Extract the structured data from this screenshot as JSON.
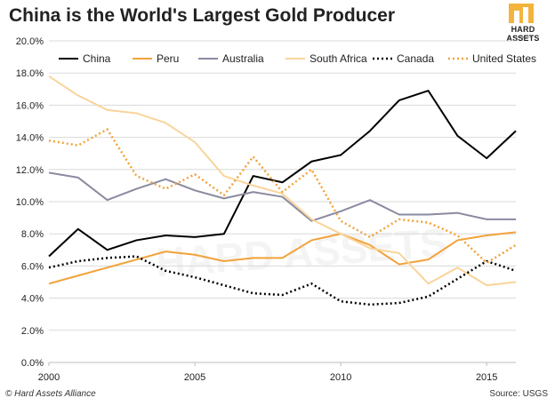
{
  "chart_data": {
    "type": "line",
    "title": "China is the World's Largest Gold Producer",
    "xlabel": "",
    "ylabel": "",
    "x": [
      2000,
      2001,
      2002,
      2003,
      2004,
      2005,
      2006,
      2007,
      2008,
      2009,
      2010,
      2011,
      2012,
      2013,
      2014,
      2015,
      2016
    ],
    "xlim": [
      2000,
      2016
    ],
    "ylim": [
      0,
      20
    ],
    "x_ticks": [
      2000,
      2005,
      2010,
      2015
    ],
    "x_tick_labels": [
      "2000",
      "2005",
      "2010",
      "2015"
    ],
    "y_ticks": [
      0,
      2,
      4,
      6,
      8,
      10,
      12,
      14,
      16,
      18,
      20
    ],
    "y_tick_labels": [
      "0.0%",
      "2.0%",
      "4.0%",
      "6.0%",
      "8.0%",
      "10.0%",
      "12.0%",
      "14.0%",
      "16.0%",
      "18.0%",
      "20.0%"
    ],
    "grid": true,
    "legend_position": "top",
    "series": [
      {
        "name": "China",
        "color": "#000000",
        "style": "solid",
        "values": [
          6.6,
          8.3,
          7.0,
          7.6,
          7.9,
          7.8,
          8.0,
          11.6,
          11.2,
          12.5,
          12.9,
          14.4,
          16.3,
          16.9,
          14.1,
          12.7,
          14.4
        ]
      },
      {
        "name": "Peru",
        "color": "#f2a23a",
        "style": "solid",
        "values": [
          4.9,
          5.4,
          5.9,
          6.4,
          6.9,
          6.7,
          6.3,
          6.5,
          6.5,
          7.6,
          8.0,
          7.3,
          6.1,
          6.4,
          7.6,
          7.9,
          8.1
        ]
      },
      {
        "name": "Australia",
        "color": "#8a8aa0",
        "style": "solid",
        "values": [
          11.8,
          11.5,
          10.1,
          10.8,
          11.4,
          10.7,
          10.2,
          10.6,
          10.3,
          8.8,
          9.4,
          10.1,
          9.2,
          9.2,
          9.3,
          8.9,
          8.9
        ]
      },
      {
        "name": "South Africa",
        "color": "#f9d49a",
        "style": "solid",
        "values": [
          17.8,
          16.6,
          15.7,
          15.5,
          14.9,
          13.7,
          11.6,
          11.0,
          10.5,
          8.9,
          8.0,
          7.1,
          6.8,
          4.9,
          5.9,
          4.8,
          5.0
        ]
      },
      {
        "name": "Canada",
        "color": "#000000",
        "style": "dotted",
        "values": [
          5.9,
          6.3,
          6.5,
          6.6,
          5.7,
          5.3,
          4.8,
          4.3,
          4.2,
          4.9,
          3.8,
          3.6,
          3.7,
          4.1,
          5.2,
          6.3,
          5.7
        ]
      },
      {
        "name": "United States",
        "color": "#f2a23a",
        "style": "dotted",
        "values": [
          13.8,
          13.5,
          14.5,
          11.6,
          10.8,
          11.7,
          10.4,
          12.8,
          10.6,
          12.0,
          8.8,
          7.8,
          8.9,
          8.7,
          7.9,
          6.2,
          7.3
        ]
      }
    ]
  },
  "watermark": "HARD ASSETS",
  "logo": {
    "text": "HARD ASSETS",
    "subtext": "ALLIANCE"
  },
  "footer": {
    "left": "© Hard Assets Alliance",
    "right": "Source: USGS"
  }
}
